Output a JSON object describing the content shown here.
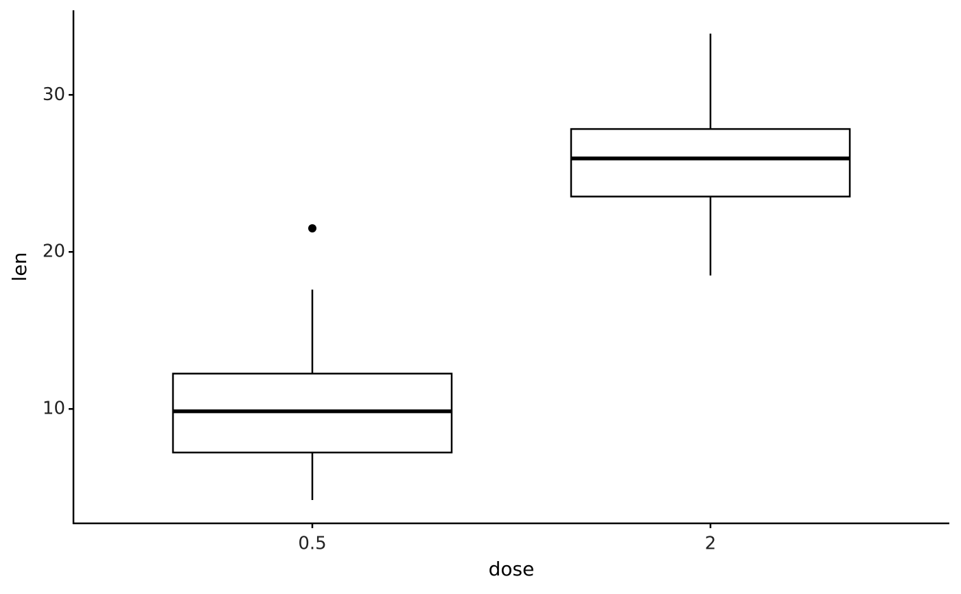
{
  "chart_data": {
    "type": "box",
    "xlabel": "dose",
    "ylabel": "len",
    "categories": [
      "0.5",
      "2"
    ],
    "boxes": [
      {
        "min": 4.2,
        "q1": 7.225,
        "median": 9.85,
        "q3": 12.25,
        "max": 17.6,
        "outliers": [
          21.5
        ]
      },
      {
        "min": 18.5,
        "q1": 23.525,
        "median": 25.95,
        "q3": 27.825,
        "max": 33.9,
        "outliers": []
      }
    ],
    "color": "#000000",
    "fill": "#ffffff",
    "ylim": [
      2.715,
      35.385
    ],
    "yticks": [
      10,
      20,
      30
    ],
    "grid": false
  }
}
